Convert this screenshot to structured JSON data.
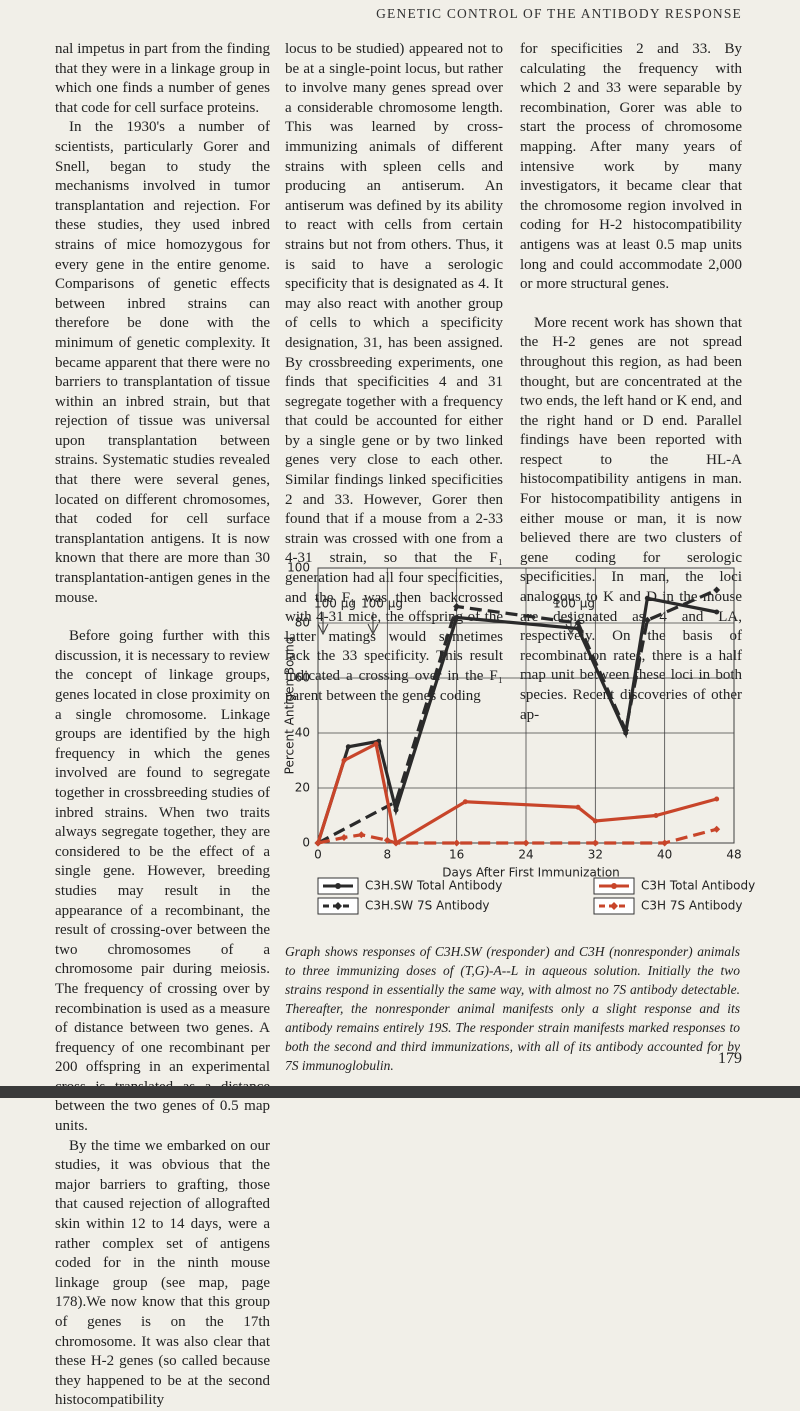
{
  "header": "GENETIC CONTROL OF THE ANTIBODY RESPONSE",
  "columns": [
    [
      "nal impetus in part from the finding that they were in a linkage group in which one finds a number of genes that code for cell surface proteins.",
      "In the 1930's a number of scientists, particularly Gorer and Snell, began to study the mechanisms involved in tumor transplantation and rejection. For these studies, they used inbred strains of mice homozygous for every gene in the entire genome. Comparisons of genetic effects between inbred strains can therefore be done with the minimum of genetic complexity. It became apparent that there were no barriers to transplantation of tissue within an inbred strain, but that rejection of tissue was universal upon transplantation between strains. Systematic studies revealed that there were several genes, located on different chromosomes, that coded for cell surface transplantation antigens. It is now known that there are more than 30 transplantation-antigen genes in the mouse.",
      "Before going further with this discussion, it is necessary to review the concept of linkage groups, genes located in close proximity on a single chromosome. Linkage groups are identified by the high frequency in which the genes involved are found to segregate together in crossbreeding studies of inbred strains. When two traits always segregate together, they are considered to be the effect of a single gene. However, breeding studies may result in the appearance of a recombinant, the result of crossing-over between the two chromosomes of a chromosome pair during meiosis. The frequency of crossing over by recombination is used as a measure of distance between two genes. A frequency of one recombinant per 200 offspring in an experimental cross is translated as a distance between the two genes of 0.5 map units.",
      "By the time we embarked on our studies, it was obvious that the major barriers to grafting, those that caused rejection of allografted skin within 12 to 14 days, were a rather complex set of antigens coded for in the ninth mouse linkage group (see map, page 178).We now know that this group of genes is on the 17th chromosome. It was also clear that these H-2 genes (so called because they happened to be at the second histocompatibility"
    ],
    [
      "locus to be studied) appeared not to be at a single-point locus, but rather to involve many genes spread over a considerable chromosome length. This was learned by cross-immunizing animals of different strains with spleen cells and producing an antiserum. An antiserum was defined by its ability to react with cells from certain strains but not from others. Thus, it is said to have a serologic specificity that is designated as 4. It may also react with another group of cells to which a specificity designation, 31, has been assigned. By crossbreeding experiments, one finds that specificities 4 and 31 segregate together with a frequency that could be accounted for either by a single gene or by two linked genes very close to each other. Similar findings linked specificities 2 and 33. However, Gorer then found that if a mouse from a 2-33 strain was crossed with one from a 4-31 strain, so that the F₁ generation had all four specificities, and the F₁ was then backcrossed with 4-31 mice, the offspring of the latter matings would sometimes lack the 33 specificity. This result indicated a crossing over in the F₁ parent between the genes coding"
    ],
    [
      "for specificities 2 and 33. By calculating the frequency with which 2 and 33 were separable by recombination, Gorer was able to start the process of chromosome mapping. After many years of intensive work by many investigators, it became clear that the chromosome region involved in coding for H-2 histocompatibility antigens was at least 0.5 map units long and could accommodate 2,000 or more structural genes.",
      "More recent work has shown that the H-2 genes are not spread throughout this region, as had been thought, but are concentrated at the two ends, the left hand or K end, and the right hand or D end. Parallel findings have been reported with respect to the HL-A histocompatibility antigens in man. For histocompatibility antigens in either mouse or man, it is now believed there are two clusters of gene coding for serologic specificities. In man, the loci analogous to K and D in the mouse are designated as 4 and LA, respectively. On the basis of recombination rates, there is a half map unit between these loci in both species. Recent discoveries of other ap-"
    ]
  ],
  "chart_data": {
    "type": "line",
    "x_label": "Days After First Immunization",
    "y_label": "Percent Antigen Bound",
    "xlim": [
      0,
      48
    ],
    "xticks": [
      0,
      8,
      16,
      24,
      32,
      40,
      48
    ],
    "ylim": [
      0,
      100
    ],
    "yticks": [
      0,
      20,
      40,
      60,
      80,
      100
    ],
    "grid": true,
    "annotations": [
      "100 µg",
      "100 µg",
      "100 µg"
    ],
    "series": [
      {
        "name": "C3H.SW Total Antibody",
        "color": "#2a2a2a",
        "line_style": "solid",
        "marker": "circle",
        "x": [
          0,
          3.5,
          7,
          9,
          16,
          30,
          35.5,
          38,
          46
        ],
        "values": [
          0,
          35,
          37,
          12,
          82,
          78,
          40,
          89,
          84
        ]
      },
      {
        "name": "C3H.SW 7S Antibody",
        "color": "#2a2a2a",
        "line_style": "dashed",
        "marker": "diamond",
        "x": [
          0,
          9,
          16,
          30,
          35.5,
          38,
          46
        ],
        "values": [
          0,
          15,
          86,
          80,
          41,
          81,
          92
        ]
      },
      {
        "name": "C3H Total Antibody",
        "color": "#c8452a",
        "line_style": "solid",
        "marker": "circle",
        "x": [
          0,
          3,
          6.7,
          9,
          17,
          30,
          32,
          39,
          46
        ],
        "values": [
          0,
          30,
          36,
          0,
          15,
          13,
          8,
          10,
          16
        ]
      },
      {
        "name": "C3H 7S Antibody",
        "color": "#c8452a",
        "line_style": "dashed",
        "marker": "diamond",
        "x": [
          0,
          3,
          5,
          8,
          9,
          16,
          24,
          32,
          40,
          46
        ],
        "values": [
          0,
          2,
          3,
          1,
          0,
          0,
          0,
          0,
          0,
          5
        ]
      }
    ]
  },
  "caption": "Graph shows responses of C3H.SW (responder) and C3H (nonresponder) animals to three immunizing doses of (T,G)-A--L in aqueous solution. Initially the two strains respond in essentially the same way, with almost no 7S antibody detectable. Thereafter, the nonresponder animal manifests only a slight response and its antibody remains entirely 19S. The responder strain manifests marked responses to both the second and third immunizations, with all of its antibody accounted for by 7S immunoglobulin.",
  "page_number": "179"
}
